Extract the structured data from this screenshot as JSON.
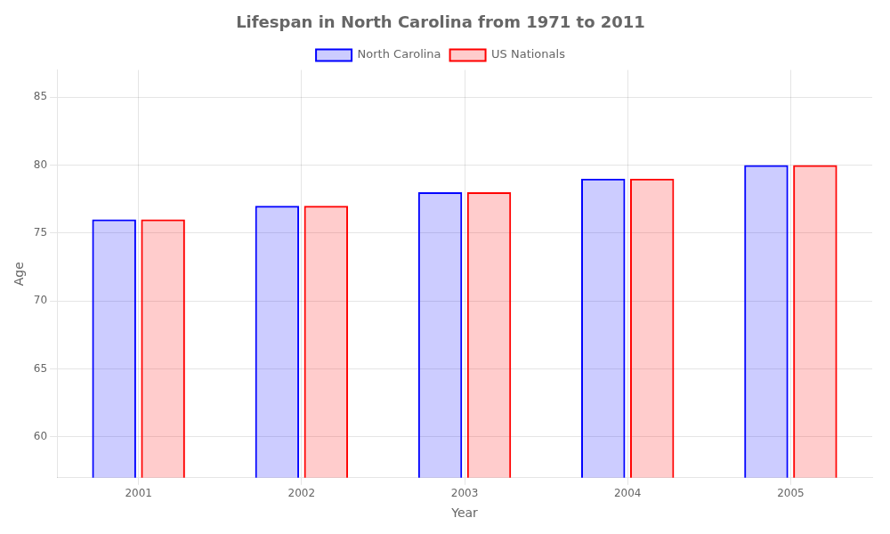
{
  "chart_data": {
    "type": "bar",
    "title": "Lifespan in North Carolina from 1971 to 2011",
    "x_label": "Year",
    "y_label": "Age",
    "categories": [
      "2001",
      "2002",
      "2003",
      "2004",
      "2005"
    ],
    "series": [
      {
        "name": "North Carolina",
        "color": "#0000ff",
        "values": [
          76,
          77,
          78,
          79,
          80
        ]
      },
      {
        "name": "US Nationals",
        "color": "#ff0000",
        "values": [
          76,
          77,
          78,
          79,
          80
        ]
      }
    ],
    "ylim": [
      57,
      87
    ],
    "yticks": [
      60,
      65,
      70,
      75,
      80,
      85
    ],
    "grid": true,
    "legend": "top"
  }
}
